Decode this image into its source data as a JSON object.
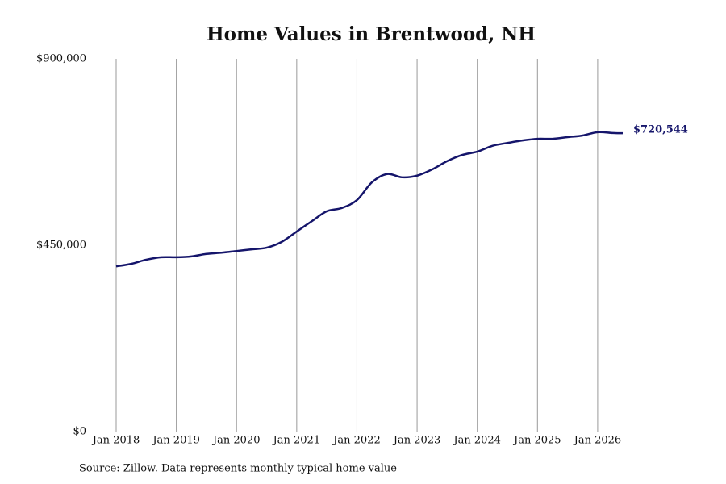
{
  "chart_data": {
    "type": "line",
    "title": "Home Values in Brentwood, NH",
    "source": "Source: Zillow. Data represents monthly typical home value",
    "x": [
      "2018-01",
      "2018-04",
      "2018-07",
      "2018-10",
      "2019-01",
      "2019-04",
      "2019-07",
      "2019-10",
      "2020-01",
      "2020-04",
      "2020-07",
      "2020-10",
      "2021-01",
      "2021-04",
      "2021-07",
      "2021-10",
      "2022-01",
      "2022-04",
      "2022-07",
      "2022-10",
      "2023-01",
      "2023-04",
      "2023-07",
      "2023-10",
      "2024-01",
      "2024-04",
      "2024-07",
      "2024-10",
      "2025-01",
      "2025-04",
      "2025-07",
      "2025-10",
      "2026-01",
      "2026-04",
      "2026-06"
    ],
    "values": [
      399000,
      405000,
      415000,
      421000,
      421000,
      423000,
      429000,
      432000,
      436000,
      440000,
      444000,
      458000,
      483000,
      508000,
      532000,
      540000,
      559000,
      602000,
      622000,
      614000,
      618000,
      633000,
      653000,
      668000,
      676000,
      690000,
      697000,
      703000,
      707000,
      707000,
      711000,
      715000,
      723000,
      721000,
      720544
    ],
    "value_labels": [
      null,
      null,
      null,
      null,
      null,
      null,
      null,
      null,
      null,
      null,
      null,
      null,
      null,
      null,
      null,
      null,
      null,
      null,
      null,
      null,
      null,
      null,
      null,
      null,
      null,
      null,
      null,
      null,
      null,
      null,
      null,
      null,
      null,
      null,
      "$720,544"
    ],
    "color": "#15156b",
    "xlim": [
      "2018-01",
      "2026-06"
    ],
    "xticks": [
      {
        "value": "2018-01",
        "label": "Jan 2018"
      },
      {
        "value": "2019-01",
        "label": "Jan 2019"
      },
      {
        "value": "2020-01",
        "label": "Jan 2020"
      },
      {
        "value": "2021-01",
        "label": "Jan 2021"
      },
      {
        "value": "2022-01",
        "label": "Jan 2022"
      },
      {
        "value": "2023-01",
        "label": "Jan 2023"
      },
      {
        "value": "2024-01",
        "label": "Jan 2024"
      },
      {
        "value": "2025-01",
        "label": "Jan 2025"
      },
      {
        "value": "2026-01",
        "label": "Jan 2026"
      }
    ],
    "ylim": [
      0,
      900000
    ],
    "yticks": [
      {
        "value": 0,
        "label": "$0"
      },
      {
        "value": 450000,
        "label": "$450,000"
      },
      {
        "value": 900000,
        "label": "$900,000"
      }
    ],
    "grid": "x"
  }
}
